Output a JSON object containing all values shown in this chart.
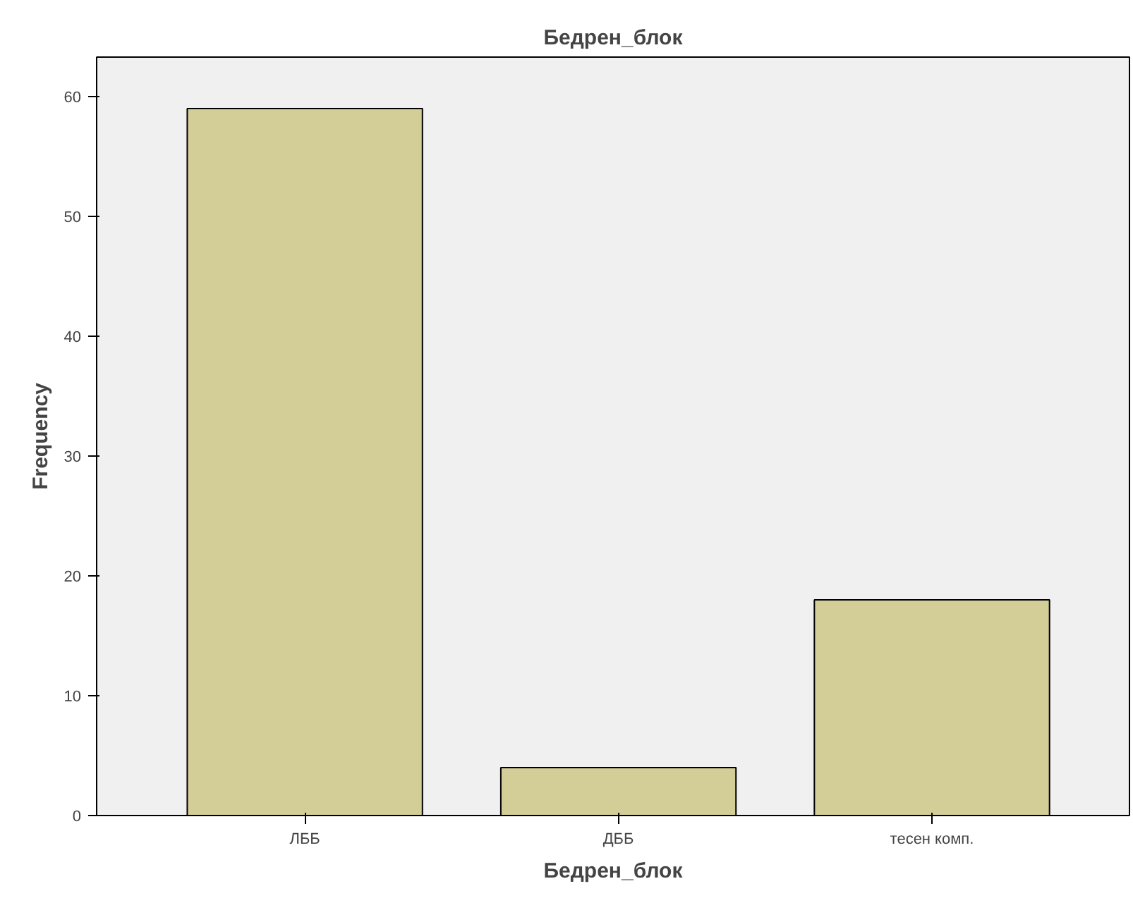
{
  "chart_data": {
    "type": "bar",
    "title": "Бедрен_блок",
    "xlabel": "Бедрен_блок",
    "ylabel": "Frequency",
    "categories": [
      "ЛББ",
      "ДББ",
      "тесен комп."
    ],
    "values": [
      59,
      4,
      18
    ],
    "color": "#d3ce97",
    "ylim": [
      0,
      63.3
    ],
    "yticks": [
      0,
      10,
      20,
      30,
      40,
      50,
      60
    ],
    "grid": false
  }
}
